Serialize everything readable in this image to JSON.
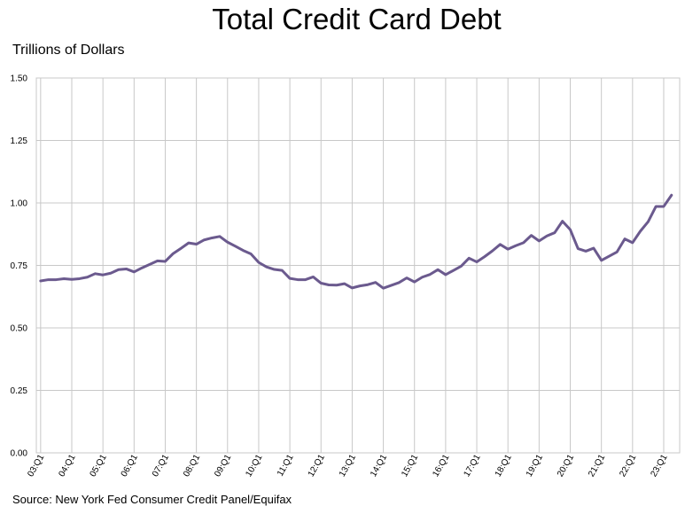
{
  "chart_data": {
    "type": "line",
    "title": "Total Credit Card Debt",
    "ylabel": "Trillions of Dollars",
    "source": "Source: New York Fed Consumer Credit Panel/Equifax",
    "ylim": [
      0,
      1.5
    ],
    "yticks": [
      "0.00",
      "0.25",
      "0.50",
      "0.75",
      "1.00",
      "1.25",
      "1.50"
    ],
    "xticks": [
      "03:Q1",
      "04:Q1",
      "05:Q1",
      "06:Q1",
      "07:Q1",
      "08:Q1",
      "09:Q1",
      "10:Q1",
      "11:Q1",
      "12:Q1",
      "13:Q1",
      "14:Q1",
      "15:Q1",
      "16:Q1",
      "17:Q1",
      "18:Q1",
      "19:Q1",
      "20:Q1",
      "21:Q1",
      "22:Q1",
      "23:Q1"
    ],
    "grid": true,
    "line_color": "#6b5a8e",
    "series": [
      {
        "values": [
          0.688,
          0.693,
          0.693,
          0.697,
          0.694,
          0.697,
          0.703,
          0.717,
          0.712,
          0.719,
          0.733,
          0.736,
          0.724,
          0.74,
          0.754,
          0.768,
          0.766,
          0.797,
          0.818,
          0.84,
          0.835,
          0.852,
          0.86,
          0.866,
          0.843,
          0.827,
          0.81,
          0.796,
          0.762,
          0.744,
          0.734,
          0.73,
          0.698,
          0.693,
          0.693,
          0.704,
          0.679,
          0.672,
          0.671,
          0.677,
          0.66,
          0.668,
          0.673,
          0.682,
          0.659,
          0.67,
          0.681,
          0.7,
          0.684,
          0.703,
          0.714,
          0.733,
          0.713,
          0.73,
          0.747,
          0.779,
          0.764,
          0.785,
          0.808,
          0.834,
          0.815,
          0.829,
          0.841,
          0.87,
          0.848,
          0.868,
          0.881,
          0.927,
          0.893,
          0.817,
          0.807,
          0.819,
          0.77,
          0.787,
          0.804,
          0.856,
          0.841,
          0.887,
          0.925,
          0.986,
          0.986,
          1.031
        ]
      }
    ]
  }
}
